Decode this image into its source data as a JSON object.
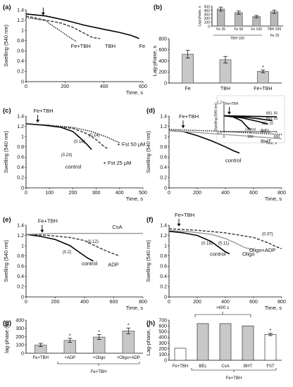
{
  "chart_data": [
    {
      "panel": "(a)",
      "type": "line",
      "ylabel": "Swelling (540 nm)",
      "xlabel": "Time, s",
      "xlim": [
        0,
        600
      ],
      "ylim": [
        0,
        1.4
      ],
      "xticks": [
        "0",
        "200",
        "400",
        "600"
      ],
      "yticks": [
        "0",
        "0.2",
        "0.4",
        "0.6",
        "0.8",
        "1",
        "1.2",
        "1.4"
      ],
      "series": [
        {
          "name": "Fe",
          "style": "solid",
          "x": [
            0,
            100,
            200,
            300,
            400,
            480,
            540,
            580
          ],
          "y": [
            1.32,
            1.28,
            1.2,
            1.1,
            1.02,
            0.96,
            0.9,
            0.84
          ]
        },
        {
          "name": "TBH",
          "style": "dashed",
          "x": [
            0,
            100,
            180,
            240,
            300,
            340,
            380
          ],
          "y": [
            1.28,
            1.2,
            1.14,
            1.06,
            0.94,
            0.86,
            0.84
          ]
        },
        {
          "name": "Fe+TBH",
          "style": "dotted",
          "x": [
            0,
            100,
            140,
            180,
            220,
            260
          ],
          "y": [
            1.25,
            1.19,
            1.08,
            0.98,
            0.87,
            0.78
          ]
        }
      ],
      "labels": [
        "Fe+TBH",
        "TBH",
        "Fe"
      ]
    },
    {
      "panel": "(b)",
      "type": "bar",
      "ylabel": "Lag-phase, s",
      "ylim": [
        0,
        800
      ],
      "yticks": [
        "0",
        "200",
        "400",
        "600",
        "800"
      ],
      "categories": [
        "Fe",
        "TBH",
        "Fe+TBH"
      ],
      "values": [
        520,
        420,
        210
      ],
      "errors": [
        70,
        60,
        25
      ],
      "significant": [
        false,
        false,
        true
      ],
      "inset": {
        "ylabel": "Lag-phase, s",
        "ylim": [
          0,
          500
        ],
        "yticks": [
          "0",
          "100",
          "200",
          "300",
          "400",
          "500"
        ],
        "categories": [
          "Fe 25",
          "Fe 50",
          "Fe 100",
          "TBH 200"
        ],
        "values": [
          430,
          340,
          240,
          360
        ],
        "errors": [
          50,
          40,
          30,
          40
        ],
        "group_labels": [
          "TBH 100",
          "Fe 25"
        ]
      }
    },
    {
      "panel": "(c)",
      "type": "line",
      "ylabel": "Swelling (540 nm)",
      "xlabel": "Time, s",
      "xlim": [
        0,
        500
      ],
      "ylim": [
        0,
        1.4
      ],
      "xticks": [
        "0",
        "100",
        "200",
        "300",
        "400",
        "500"
      ],
      "yticks": [
        "0",
        "0.2",
        "0.4",
        "0.6",
        "0.8",
        "1",
        "1.2",
        "1.4"
      ],
      "arrow_label": "Fe+TBH",
      "series": [
        {
          "name": "control",
          "style": "solid",
          "x": [
            0,
            80,
            150,
            200,
            230,
            260,
            280
          ],
          "y": [
            1.25,
            1.22,
            1.18,
            1.1,
            0.98,
            0.85,
            0.75
          ]
        },
        {
          "name": "+ Fst 25 μM",
          "style": "dashed",
          "x": [
            0,
            100,
            200,
            260,
            300,
            330,
            350
          ],
          "y": [
            1.25,
            1.22,
            1.16,
            1.06,
            0.94,
            0.82,
            0.76
          ]
        },
        {
          "name": "+ Fst 50 μM",
          "style": "dotted",
          "x": [
            0,
            100,
            200,
            280,
            340,
            380,
            400
          ],
          "y": [
            1.25,
            1.22,
            1.18,
            1.1,
            1.0,
            0.92,
            0.88
          ]
        }
      ],
      "rate_labels": [
        "(0.23)",
        "(0.18)",
        "(0.14)"
      ],
      "labels": [
        "control",
        "+ Fst 25 μM",
        "+ Fst 50 μM"
      ]
    },
    {
      "panel": "(d)",
      "type": "line",
      "ylabel": "Swelling (540 nm)",
      "xlabel": "Time, s",
      "xlim": [
        0,
        800
      ],
      "ylim": [
        0,
        1.4
      ],
      "xticks": [
        "0",
        "200",
        "400",
        "600",
        "800"
      ],
      "yticks": [
        "0",
        "0.2",
        "0.4",
        "0.6",
        "0.8",
        "1",
        "1.2",
        "1.4"
      ],
      "arrow_label": "Fe+TBH",
      "series": [
        {
          "name": "control",
          "style": "solid",
          "x": [
            0,
            100,
            200,
            300,
            400,
            460,
            500
          ],
          "y": [
            1.12,
            1.1,
            1.02,
            0.92,
            0.8,
            0.72,
            0.68
          ]
        },
        {
          "name": "BEL",
          "style": "dotted",
          "x": [
            0,
            200,
            400,
            600,
            800
          ],
          "y": [
            1.14,
            1.12,
            1.1,
            1.07,
            1.04
          ]
        },
        {
          "name": "BHT",
          "style": "solid-grey",
          "x": [
            0,
            200,
            400,
            600,
            800
          ],
          "y": [
            1.12,
            1.08,
            1.04,
            1.0,
            0.96
          ]
        }
      ],
      "labels": [
        "BEL",
        "BHT",
        "control"
      ],
      "inset": {
        "ylabel": "Swelling (540 nm)",
        "xlabel": "Time, s",
        "xlim": [
          0,
          600
        ],
        "ylim": [
          1.0,
          1.6
        ],
        "xticks": [
          "0",
          "300",
          "600"
        ],
        "yticks": [
          "1.6",
          "1.2"
        ],
        "arrow_label": "Fe+TBH",
        "series": [
          {
            "name": "control",
            "x": [
              0,
              100,
              200,
              260,
              300
            ],
            "y": [
              1.32,
              1.3,
              1.22,
              1.1,
              1.04
            ]
          },
          {
            "name": "BEL 10",
            "x": [
              0,
              200,
              400,
              500
            ],
            "y": [
              1.32,
              1.28,
              1.2,
              1.15
            ]
          },
          {
            "name": "BEL 25",
            "x": [
              0,
              200,
              400,
              550
            ],
            "y": [
              1.32,
              1.3,
              1.26,
              1.22
            ]
          },
          {
            "name": "BEL 50",
            "x": [
              0,
              300,
              600
            ],
            "y": [
              1.32,
              1.31,
              1.3
            ]
          }
        ],
        "labels": [
          "BEL 50",
          "BEL 25",
          "BEL 10",
          "control"
        ]
      }
    },
    {
      "panel": "(e)",
      "type": "line",
      "ylabel": "Swelling (540 nm)",
      "xlabel": "Time, s",
      "xlim": [
        0,
        800
      ],
      "ylim": [
        0,
        1.4
      ],
      "xticks": [
        "0",
        "200",
        "400",
        "600",
        "800"
      ],
      "yticks": [
        "0",
        "0.2",
        "0.4",
        "0.6",
        "0.8",
        "1",
        "1.2",
        "1.4"
      ],
      "arrow_label": "Fe+TBH",
      "series": [
        {
          "name": "control",
          "style": "solid",
          "x": [
            0,
            100,
            200,
            300,
            360,
            420,
            460
          ],
          "y": [
            1.22,
            1.18,
            1.12,
            1.0,
            0.88,
            0.76,
            0.7
          ]
        },
        {
          "name": "ADP",
          "style": "dashed",
          "x": [
            0,
            150,
            300,
            400,
            500,
            580,
            640
          ],
          "y": [
            1.22,
            1.2,
            1.16,
            1.1,
            0.96,
            0.86,
            0.8
          ]
        },
        {
          "name": "CsA",
          "style": "solid-grey",
          "x": [
            0,
            200,
            400,
            600,
            800
          ],
          "y": [
            1.22,
            1.24,
            1.24,
            1.24,
            1.24
          ]
        }
      ],
      "rate_labels": [
        "(0.2)",
        "(0.12)"
      ],
      "labels": [
        "CsA",
        "ADP",
        "control"
      ]
    },
    {
      "panel": "(f)",
      "type": "line",
      "ylabel": "Swelling (540 nm)",
      "xlabel": "Time, s",
      "xlim": [
        0,
        800
      ],
      "ylim": [
        0,
        1.4
      ],
      "xticks": [
        "0",
        "200",
        "400",
        "600",
        "800"
      ],
      "yticks": [
        "0",
        "0.2",
        "0.4",
        "0.6",
        "0.8",
        "1",
        "1.2",
        "1.4"
      ],
      "arrow_label": "Fe+TBH",
      "series": [
        {
          "name": "control",
          "style": "solid",
          "x": [
            0,
            100,
            200,
            300,
            360,
            400,
            430
          ],
          "y": [
            1.28,
            1.25,
            1.2,
            1.08,
            0.96,
            0.88,
            0.84
          ]
        },
        {
          "name": "Oligo",
          "style": "solid-grey",
          "x": [
            0,
            150,
            300,
            400,
            480,
            540,
            600
          ],
          "y": [
            1.3,
            1.27,
            1.22,
            1.14,
            1.04,
            0.96,
            0.92
          ]
        },
        {
          "name": "Oligo+ADP",
          "style": "dashed",
          "x": [
            0,
            200,
            400,
            600,
            700,
            760,
            800
          ],
          "y": [
            1.33,
            1.3,
            1.25,
            1.16,
            1.06,
            0.98,
            0.94
          ]
        }
      ],
      "rate_labels": [
        "(0.18)",
        "(0.11)",
        "(0.07)"
      ],
      "labels": [
        "control",
        "Oligo",
        "Oligo+ADP"
      ]
    },
    {
      "panel": "(g)",
      "type": "bar",
      "ylabel": "lag-phase (%)",
      "ylim": [
        0,
        400
      ],
      "yticks": [
        "0",
        "100",
        "200",
        "300",
        "400"
      ],
      "categories": [
        "Fe+TBH",
        "+ADP",
        "+Oligo",
        "+Oligo+ADP"
      ],
      "values": [
        100,
        155,
        195,
        270
      ],
      "errors": [
        20,
        25,
        30,
        35
      ],
      "significant": [
        false,
        true,
        true,
        true
      ],
      "group_label": "Fe+TBH"
    },
    {
      "panel": "(h)",
      "type": "bar",
      "ylabel": "Lag-phase, s",
      "ylim": [
        0,
        700
      ],
      "yticks": [
        "0",
        "100",
        "200",
        "300",
        "400",
        "500",
        "600",
        "700"
      ],
      "categories": [
        "Fe+TBH",
        "BEL",
        "CsA",
        "BHT",
        "FST"
      ],
      "values": [
        210,
        640,
        640,
        600,
        450
      ],
      "errors": [
        0,
        0,
        0,
        0,
        20
      ],
      "colors": [
        "#ffffff",
        "#c8c8c8",
        "#c8c8c8",
        "#c8c8c8",
        "#ffffff"
      ],
      "significant": [
        false,
        false,
        false,
        false,
        true
      ],
      "annotation": ">600 s",
      "group_label": "Fe+TBH"
    }
  ]
}
